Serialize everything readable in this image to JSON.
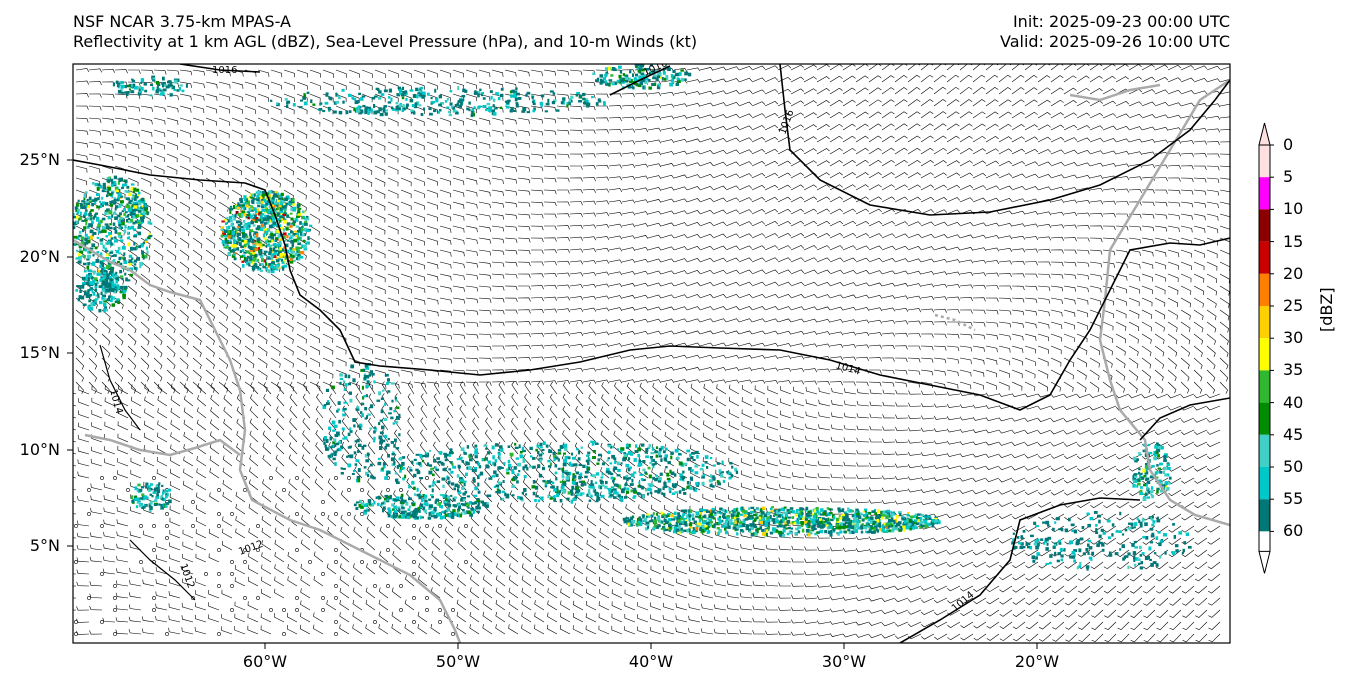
{
  "header": {
    "model": "NSF NCAR 3.75-km MPAS-A",
    "fields": "Reflectivity at 1 km AGL (dBZ), Sea-Level Pressure (hPa), and 10-m Winds (kt)",
    "init": "Init: 2025-09-23 00:00 UTC",
    "valid": "Valid: 2025-09-26 10:00 UTC"
  },
  "axes": {
    "lat_labels": [
      "25°N",
      "20°N",
      "15°N",
      "10°N",
      "5°N"
    ],
    "lon_labels": [
      "60°W",
      "50°W",
      "40°W",
      "30°W",
      "20°W"
    ]
  },
  "colorbar": {
    "label": "[dBZ]",
    "ticks": [
      "0",
      "5",
      "10",
      "15",
      "20",
      "25",
      "30",
      "35",
      "40",
      "45",
      "50",
      "55",
      "60"
    ],
    "colors": [
      "#007878",
      "#00c8c8",
      "#40d0c8",
      "#008c00",
      "#30b830",
      "#ffff00",
      "#ffd000",
      "#ff8000",
      "#c80000",
      "#8c0000",
      "#ff00ff",
      "#ffe0e0"
    ]
  },
  "contours": {
    "labels": [
      "1016",
      "1016",
      "1016",
      "1014",
      "1014",
      "1014",
      "1012",
      "1012"
    ]
  },
  "map_colors": {
    "coast": "#aaaaaa",
    "isobar": "#000000",
    "barb": "#000000"
  }
}
